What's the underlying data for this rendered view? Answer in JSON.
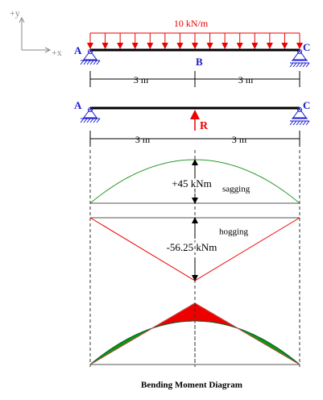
{
  "axes": {
    "y": "+y",
    "x": "+x"
  },
  "loaded_beam": {
    "load": "10 kN/m",
    "labels": [
      "A",
      "B",
      "C"
    ],
    "spans": [
      "3 m",
      "3 m"
    ]
  },
  "released_beam": {
    "labels": [
      "A",
      "C"
    ],
    "reaction": "R",
    "spans": [
      "3 m",
      "3 m"
    ]
  },
  "sagging_diagram": {
    "value": "+45 kNm",
    "label": "sagging"
  },
  "hogging_diagram": {
    "label": "hogging",
    "value": "-56.25 kNm"
  },
  "caption": "Bending Moment Diagram"
}
